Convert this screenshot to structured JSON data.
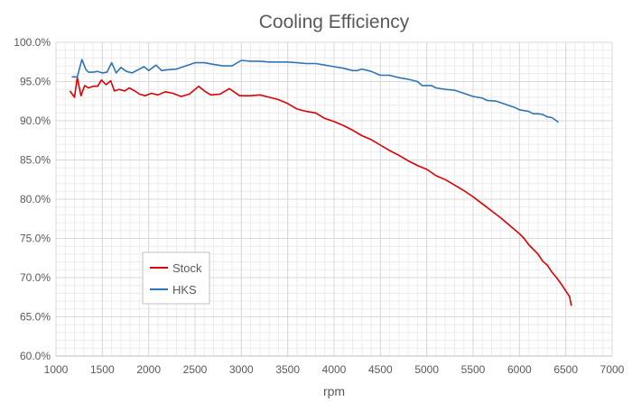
{
  "chart_data": {
    "type": "line",
    "title": "Cooling Efficiency",
    "xlabel": "rpm",
    "ylabel": "",
    "xlim": [
      1000,
      7000
    ],
    "ylim": [
      0.6,
      1.0
    ],
    "x_ticks": [
      1000,
      1500,
      2000,
      2500,
      3000,
      3500,
      4000,
      4500,
      5000,
      5500,
      6000,
      6500,
      7000
    ],
    "y_ticks": [
      0.6,
      0.65,
      0.7,
      0.75,
      0.8,
      0.85,
      0.9,
      0.95,
      1.0
    ],
    "y_tick_labels": [
      "60.0%",
      "65.0%",
      "70.0%",
      "75.0%",
      "80.0%",
      "85.0%",
      "90.0%",
      "95.0%",
      "100.0%"
    ],
    "grid": true,
    "legend_position": "bottom-left",
    "series": [
      {
        "name": "Stock",
        "color": "#e00000",
        "points": [
          [
            1150,
            0.938
          ],
          [
            1200,
            0.93
          ],
          [
            1230,
            0.955
          ],
          [
            1270,
            0.932
          ],
          [
            1310,
            0.945
          ],
          [
            1350,
            0.942
          ],
          [
            1400,
            0.944
          ],
          [
            1450,
            0.944
          ],
          [
            1490,
            0.952
          ],
          [
            1540,
            0.946
          ],
          [
            1590,
            0.951
          ],
          [
            1630,
            0.938
          ],
          [
            1680,
            0.94
          ],
          [
            1740,
            0.938
          ],
          [
            1790,
            0.942
          ],
          [
            1850,
            0.938
          ],
          [
            1900,
            0.934
          ],
          [
            1960,
            0.932
          ],
          [
            2030,
            0.935
          ],
          [
            2100,
            0.933
          ],
          [
            2180,
            0.937
          ],
          [
            2260,
            0.935
          ],
          [
            2350,
            0.931
          ],
          [
            2440,
            0.934
          ],
          [
            2540,
            0.944
          ],
          [
            2600,
            0.938
          ],
          [
            2670,
            0.933
          ],
          [
            2770,
            0.934
          ],
          [
            2870,
            0.941
          ],
          [
            2980,
            0.932
          ],
          [
            3100,
            0.932
          ],
          [
            3200,
            0.933
          ],
          [
            3300,
            0.93
          ],
          [
            3400,
            0.927
          ],
          [
            3500,
            0.922
          ],
          [
            3600,
            0.915
          ],
          [
            3700,
            0.912
          ],
          [
            3800,
            0.91
          ],
          [
            3900,
            0.903
          ],
          [
            4000,
            0.899
          ],
          [
            4100,
            0.894
          ],
          [
            4200,
            0.888
          ],
          [
            4300,
            0.881
          ],
          [
            4400,
            0.876
          ],
          [
            4500,
            0.869
          ],
          [
            4600,
            0.862
          ],
          [
            4700,
            0.856
          ],
          [
            4800,
            0.849
          ],
          [
            4900,
            0.843
          ],
          [
            5000,
            0.838
          ],
          [
            5100,
            0.83
          ],
          [
            5200,
            0.825
          ],
          [
            5300,
            0.818
          ],
          [
            5400,
            0.811
          ],
          [
            5500,
            0.803
          ],
          [
            5600,
            0.794
          ],
          [
            5700,
            0.785
          ],
          [
            5800,
            0.776
          ],
          [
            5900,
            0.766
          ],
          [
            6000,
            0.756
          ],
          [
            6050,
            0.75
          ],
          [
            6100,
            0.742
          ],
          [
            6200,
            0.73
          ],
          [
            6250,
            0.721
          ],
          [
            6300,
            0.716
          ],
          [
            6350,
            0.707
          ],
          [
            6400,
            0.7
          ],
          [
            6450,
            0.692
          ],
          [
            6500,
            0.683
          ],
          [
            6540,
            0.676
          ],
          [
            6560,
            0.664
          ]
        ]
      },
      {
        "name": "HKS",
        "color": "#2e75b6",
        "points": [
          [
            1170,
            0.956
          ],
          [
            1230,
            0.956
          ],
          [
            1280,
            0.978
          ],
          [
            1320,
            0.966
          ],
          [
            1350,
            0.962
          ],
          [
            1400,
            0.962
          ],
          [
            1450,
            0.963
          ],
          [
            1500,
            0.961
          ],
          [
            1550,
            0.962
          ],
          [
            1600,
            0.974
          ],
          [
            1650,
            0.961
          ],
          [
            1700,
            0.968
          ],
          [
            1760,
            0.963
          ],
          [
            1820,
            0.961
          ],
          [
            1870,
            0.964
          ],
          [
            1950,
            0.969
          ],
          [
            2000,
            0.964
          ],
          [
            2080,
            0.971
          ],
          [
            2140,
            0.964
          ],
          [
            2200,
            0.965
          ],
          [
            2300,
            0.966
          ],
          [
            2400,
            0.97
          ],
          [
            2500,
            0.974
          ],
          [
            2600,
            0.974
          ],
          [
            2700,
            0.972
          ],
          [
            2800,
            0.97
          ],
          [
            2900,
            0.97
          ],
          [
            3000,
            0.977
          ],
          [
            3100,
            0.976
          ],
          [
            3200,
            0.976
          ],
          [
            3300,
            0.975
          ],
          [
            3400,
            0.975
          ],
          [
            3500,
            0.975
          ],
          [
            3600,
            0.974
          ],
          [
            3700,
            0.973
          ],
          [
            3800,
            0.973
          ],
          [
            3900,
            0.971
          ],
          [
            4000,
            0.969
          ],
          [
            4100,
            0.967
          ],
          [
            4200,
            0.964
          ],
          [
            4250,
            0.964
          ],
          [
            4300,
            0.966
          ],
          [
            4400,
            0.963
          ],
          [
            4500,
            0.958
          ],
          [
            4600,
            0.958
          ],
          [
            4700,
            0.955
          ],
          [
            4800,
            0.953
          ],
          [
            4900,
            0.95
          ],
          [
            4950,
            0.945
          ],
          [
            5050,
            0.945
          ],
          [
            5100,
            0.942
          ],
          [
            5200,
            0.94
          ],
          [
            5300,
            0.939
          ],
          [
            5400,
            0.935
          ],
          [
            5500,
            0.931
          ],
          [
            5600,
            0.929
          ],
          [
            5650,
            0.926
          ],
          [
            5750,
            0.925
          ],
          [
            5800,
            0.923
          ],
          [
            5900,
            0.919
          ],
          [
            5950,
            0.917
          ],
          [
            6000,
            0.914
          ],
          [
            6100,
            0.912
          ],
          [
            6150,
            0.909
          ],
          [
            6200,
            0.909
          ],
          [
            6250,
            0.908
          ],
          [
            6300,
            0.905
          ],
          [
            6350,
            0.904
          ],
          [
            6400,
            0.9
          ],
          [
            6420,
            0.898
          ]
        ]
      }
    ]
  }
}
